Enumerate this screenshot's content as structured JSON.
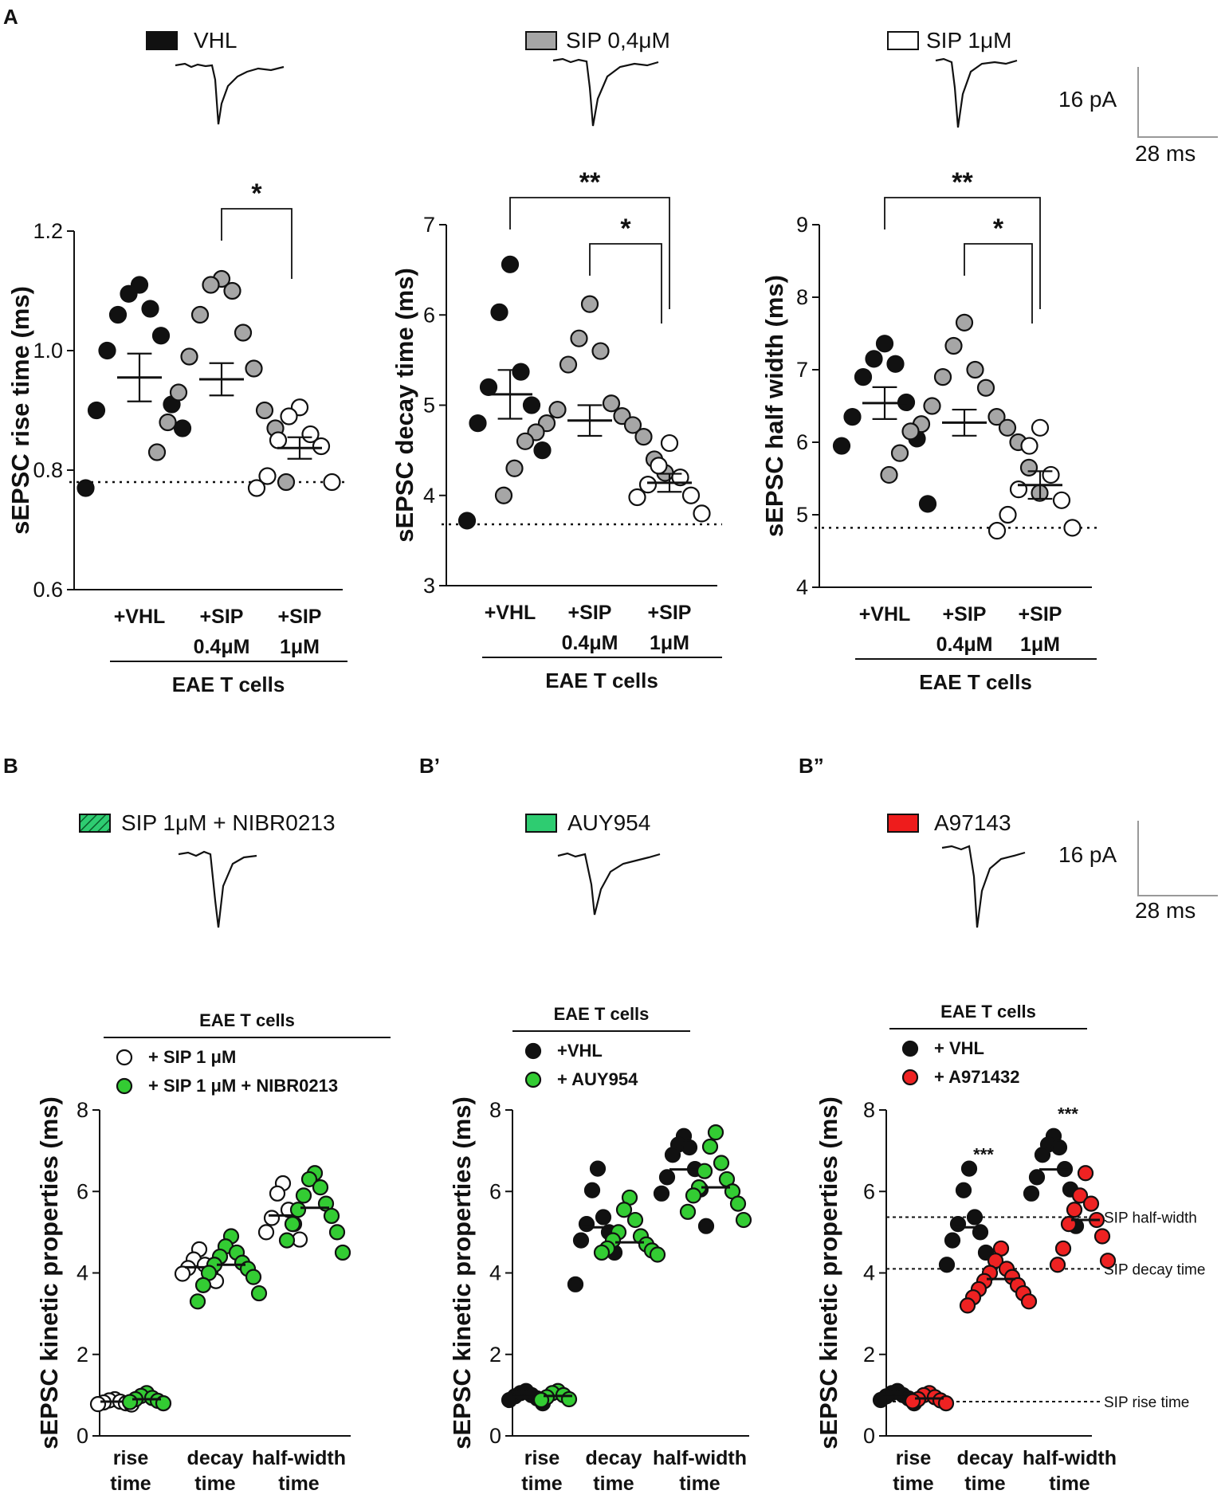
{
  "figure": {
    "panel_A_label": "A",
    "panel_B_label": "B",
    "panel_B1_label": "B’",
    "panel_B2_label": "B”",
    "scale_bar": {
      "amplitude": "16 pA",
      "time": "28 ms"
    },
    "legend_A": [
      {
        "label": "VHL",
        "fill": "#111111"
      },
      {
        "label": "SIP 0,4μM",
        "fill": "#a6a6a6"
      },
      {
        "label": "SIP 1μM",
        "fill": "#ffffff"
      }
    ],
    "legend_B_traces": [
      {
        "label": "SIP 1μM + NIBR0213",
        "fill": "#2ecc71",
        "hatched": true
      },
      {
        "label": "AUY954",
        "fill": "#2ecc71",
        "hatched": false
      },
      {
        "label": "A97143",
        "fill": "#ee1c1c",
        "hatched": false
      }
    ],
    "colors": {
      "black": "#111111",
      "gray": "#a6a6a6",
      "white": "#ffffff",
      "green": "#33cc33",
      "red": "#ee2222"
    }
  },
  "chart_data": [
    {
      "id": "A1",
      "type": "scatter",
      "ylabel": "sEPSC rise time (ms)",
      "ylim": [
        0.6,
        1.2
      ],
      "yticks": [
        "0.6",
        "0.8",
        "1.0",
        "1.2"
      ],
      "categories": [
        "+VHL|",
        "+SIP|0.4μM",
        "+SIP|1μM"
      ],
      "group_label": "EAE T cells",
      "reference_line": 0.78,
      "series": [
        {
          "name": "+VHL",
          "fill": "#111111",
          "mean": 0.955,
          "sem": 0.04,
          "values": [
            1.11,
            1.095,
            1.07,
            1.06,
            1.025,
            1.0,
            0.91,
            0.9,
            0.87,
            0.77
          ]
        },
        {
          "name": "+SIP 0.4μM",
          "fill": "#a6a6a6",
          "mean": 0.952,
          "sem": 0.027,
          "values": [
            1.12,
            1.11,
            1.1,
            1.06,
            1.03,
            0.99,
            0.97,
            0.93,
            0.9,
            0.88,
            0.87,
            0.83,
            0.78
          ]
        },
        {
          "name": "+SIP 1μM",
          "fill": "#ffffff",
          "mean": 0.837,
          "sem": 0.018,
          "values": [
            0.905,
            0.89,
            0.86,
            0.85,
            0.84,
            0.79,
            0.78,
            0.77
          ]
        }
      ],
      "significance": [
        {
          "from": 1,
          "to": 2,
          "label": "*"
        }
      ]
    },
    {
      "id": "A2",
      "type": "scatter",
      "ylabel": "sEPSC decay time (ms)",
      "ylim": [
        3,
        7
      ],
      "yticks": [
        "3",
        "4",
        "5",
        "6",
        "7"
      ],
      "categories": [
        "+VHL|",
        "+SIP|0.4μM",
        "+SIP|1μM"
      ],
      "group_label": "EAE T cells",
      "reference_line": 3.68,
      "series": [
        {
          "name": "+VHL",
          "fill": "#111111",
          "mean": 5.12,
          "sem": 0.27,
          "values": [
            6.56,
            6.03,
            5.37,
            5.2,
            5.0,
            4.8,
            4.5,
            3.72
          ]
        },
        {
          "name": "+SIP 0.4μM",
          "fill": "#a6a6a6",
          "mean": 4.83,
          "sem": 0.17,
          "values": [
            6.12,
            5.74,
            5.6,
            5.45,
            5.02,
            4.95,
            4.88,
            4.8,
            4.78,
            4.7,
            4.65,
            4.6,
            4.4,
            4.3,
            4.25,
            4.0
          ]
        },
        {
          "name": "+SIP 1μM",
          "fill": "#ffffff",
          "mean": 4.14,
          "sem": 0.1,
          "values": [
            4.58,
            4.33,
            4.2,
            4.12,
            4.0,
            3.98,
            3.8
          ]
        }
      ],
      "significance": [
        {
          "from": 1,
          "to": 2,
          "label": "*"
        },
        {
          "from": 0,
          "to": 2,
          "label": "**"
        }
      ]
    },
    {
      "id": "A3",
      "type": "scatter",
      "ylabel": "sEPSC half width (ms)",
      "ylim": [
        4,
        9
      ],
      "yticks": [
        "4",
        "5",
        "6",
        "7",
        "8",
        "9"
      ],
      "categories": [
        "+VHL|",
        "+SIP|0.4μM",
        "+SIP|1μM"
      ],
      "group_label": "EAE T cells",
      "reference_line": 4.82,
      "series": [
        {
          "name": "+VHL",
          "fill": "#111111",
          "mean": 6.54,
          "sem": 0.22,
          "values": [
            7.36,
            7.15,
            7.08,
            6.9,
            6.55,
            6.35,
            6.05,
            5.95,
            5.15
          ]
        },
        {
          "name": "+SIP 0.4μM",
          "fill": "#a6a6a6",
          "mean": 6.27,
          "sem": 0.18,
          "values": [
            7.65,
            7.33,
            7.0,
            6.9,
            6.75,
            6.5,
            6.35,
            6.25,
            6.2,
            6.15,
            6.0,
            5.85,
            5.65,
            5.55,
            5.3
          ]
        },
        {
          "name": "+SIP 1μM",
          "fill": "#ffffff",
          "mean": 5.41,
          "sem": 0.19,
          "values": [
            6.2,
            5.95,
            5.55,
            5.35,
            5.2,
            5.0,
            4.82,
            4.78
          ]
        }
      ],
      "significance": [
        {
          "from": 1,
          "to": 2,
          "label": "*"
        },
        {
          "from": 0,
          "to": 2,
          "label": "**"
        }
      ]
    },
    {
      "id": "B",
      "type": "scatter",
      "ylabel": "sEPSC kinetic properties (ms)",
      "ylim": [
        0,
        8
      ],
      "yticks": [
        "0",
        "2",
        "4",
        "6",
        "8"
      ],
      "categories": [
        "rise|time",
        "decay|time",
        "half-width|time"
      ],
      "group_header": "EAE T cells",
      "legend": [
        {
          "label": "+ SIP 1 μM",
          "fill": "#ffffff"
        },
        {
          "label": "+ SIP 1 μM + NIBR0213",
          "fill": "#33cc33"
        }
      ],
      "series": [
        {
          "name": "+ SIP 1 μM",
          "fill": "#ffffff",
          "groups": [
            {
              "mean": 0.84,
              "values": [
                0.9,
                0.87,
                0.84,
                0.82,
                0.8,
                0.78,
                0.77
              ]
            },
            {
              "mean": 4.14,
              "values": [
                4.58,
                4.33,
                4.2,
                4.12,
                4.0,
                3.98,
                3.8
              ]
            },
            {
              "mean": 5.41,
              "values": [
                6.2,
                5.95,
                5.55,
                5.35,
                5.2,
                5.0,
                4.82
              ]
            }
          ]
        },
        {
          "name": "+ SIP 1 μM + NIBR0213",
          "fill": "#33cc33",
          "groups": [
            {
              "mean": 0.9,
              "values": [
                1.05,
                0.98,
                0.93,
                0.9,
                0.86,
                0.83,
                0.8
              ]
            },
            {
              "mean": 4.2,
              "values": [
                4.9,
                4.65,
                4.5,
                4.4,
                4.25,
                4.2,
                4.1,
                4.0,
                3.9,
                3.7,
                3.5,
                3.3
              ]
            },
            {
              "mean": 5.6,
              "values": [
                6.45,
                6.3,
                6.1,
                5.9,
                5.7,
                5.55,
                5.4,
                5.2,
                5.0,
                4.8,
                4.5
              ]
            }
          ]
        }
      ]
    },
    {
      "id": "B1",
      "type": "scatter",
      "ylabel": "sEPSC kinetic properties (ms)",
      "ylim": [
        0,
        8
      ],
      "yticks": [
        "0",
        "2",
        "4",
        "6",
        "8"
      ],
      "categories": [
        "rise|time",
        "decay|time",
        "half-width|time"
      ],
      "group_header": "EAE T cells",
      "legend": [
        {
          "label": "+VHL",
          "fill": "#111111"
        },
        {
          "label": "+ AUY954",
          "fill": "#33cc33"
        }
      ],
      "series": [
        {
          "name": "+VHL",
          "fill": "#111111",
          "groups": [
            {
              "mean": 0.96,
              "values": [
                1.1,
                1.05,
                1.0,
                0.97,
                0.92,
                0.88,
                0.8
              ]
            },
            {
              "mean": 5.12,
              "values": [
                6.56,
                6.03,
                5.37,
                5.2,
                5.0,
                4.8,
                4.5,
                3.72
              ]
            },
            {
              "mean": 6.54,
              "values": [
                7.36,
                7.15,
                7.08,
                6.9,
                6.55,
                6.35,
                6.05,
                5.95,
                5.15
              ]
            }
          ]
        },
        {
          "name": "+ AUY954",
          "fill": "#33cc33",
          "groups": [
            {
              "mean": 0.98,
              "values": [
                1.1,
                1.05,
                1.0,
                0.95,
                0.9,
                0.88
              ]
            },
            {
              "mean": 4.75,
              "values": [
                5.85,
                5.55,
                5.3,
                5.0,
                4.9,
                4.8,
                4.7,
                4.6,
                4.55,
                4.5,
                4.45
              ]
            },
            {
              "mean": 6.1,
              "values": [
                7.45,
                7.1,
                6.7,
                6.5,
                6.3,
                6.1,
                6.0,
                5.9,
                5.7,
                5.5,
                5.3
              ]
            }
          ]
        }
      ]
    },
    {
      "id": "B2",
      "type": "scatter",
      "ylabel": "sEPSC kinetic properties (ms)",
      "ylim": [
        0,
        8
      ],
      "yticks": [
        "0",
        "2",
        "4",
        "6",
        "8"
      ],
      "categories": [
        "rise|time",
        "decay|time",
        "half-width|time"
      ],
      "group_header": "EAE T cells",
      "legend": [
        {
          "label": "+ VHL",
          "fill": "#111111"
        },
        {
          "label": "+ A971432",
          "fill": "#ee2222"
        }
      ],
      "reference_lines": [
        {
          "y": 5.37,
          "label": "SIP half-width"
        },
        {
          "y": 4.1,
          "label": "SIP decay time"
        },
        {
          "y": 0.84,
          "label": "SIP rise time"
        }
      ],
      "group_annotations": [
        "",
        "***",
        "***"
      ],
      "series": [
        {
          "name": "+ VHL",
          "fill": "#111111",
          "groups": [
            {
              "mean": 0.96,
              "values": [
                1.1,
                1.05,
                1.0,
                0.97,
                0.92,
                0.88,
                0.8
              ]
            },
            {
              "mean": 5.12,
              "values": [
                6.56,
                6.03,
                5.37,
                5.2,
                5.0,
                4.8,
                4.5,
                4.2
              ]
            },
            {
              "mean": 6.54,
              "values": [
                7.36,
                7.15,
                7.08,
                6.9,
                6.55,
                6.35,
                6.05,
                5.95,
                5.15
              ]
            }
          ]
        },
        {
          "name": "+ A971432",
          "fill": "#ee2222",
          "groups": [
            {
              "mean": 0.92,
              "values": [
                1.05,
                1.0,
                0.95,
                0.9,
                0.87,
                0.85,
                0.8
              ]
            },
            {
              "mean": 3.85,
              "values": [
                4.6,
                4.3,
                4.1,
                4.0,
                3.9,
                3.8,
                3.7,
                3.6,
                3.5,
                3.4,
                3.3,
                3.2
              ]
            },
            {
              "mean": 5.3,
              "values": [
                6.45,
                5.9,
                5.7,
                5.55,
                5.3,
                5.2,
                4.9,
                4.6,
                4.3,
                4.2
              ]
            }
          ]
        }
      ]
    }
  ]
}
